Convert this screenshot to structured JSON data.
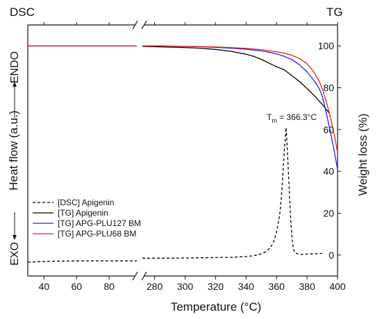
{
  "chart_data": {
    "type": "line",
    "corner_labels": {
      "left": "DSC",
      "right": "TG"
    },
    "xlabel": "Temperature (°C)",
    "ylabel_left": "Heat flow (a.u.)",
    "ylabel_right": "Weight loss (%)",
    "left_axis_annotations": {
      "top": "ENDO",
      "bottom": "EXO"
    },
    "x_break": {
      "left_segment": [
        30,
        97
      ],
      "right_segment": [
        272,
        400
      ]
    },
    "x_ticks_left": [
      40,
      60,
      80
    ],
    "x_ticks_right": [
      280,
      300,
      320,
      340,
      360,
      380,
      400
    ],
    "y_right_range": [
      -10,
      110
    ],
    "y_right_ticks": [
      0,
      20,
      40,
      60,
      80,
      100
    ],
    "legend_position": "lower-left",
    "annotation": {
      "text_main": "T",
      "text_sub": "m",
      "text_rest": " = 366.3°C",
      "x": 366.3
    },
    "series": [
      {
        "name": "[DSC] Apigenin",
        "axis": "left",
        "color": "#000000",
        "dash": "4,3",
        "x": [
          30,
          40,
          50,
          60,
          70,
          80,
          90,
          97,
          272,
          280,
          290,
          300,
          310,
          320,
          330,
          340,
          345,
          350,
          353,
          356,
          358,
          360,
          362,
          363,
          364,
          365,
          366,
          366.3,
          367,
          368,
          369,
          370,
          371,
          372,
          374,
          376,
          380,
          385,
          390
        ],
        "y": [
          -4.5,
          -4.2,
          -4.0,
          -3.9,
          -3.9,
          -3.9,
          -3.9,
          -3.9,
          -2.6,
          -2.6,
          -2.6,
          -2.5,
          -2.4,
          -2.3,
          -2.2,
          -1.8,
          -1.4,
          -0.5,
          0.5,
          2.5,
          5,
          10,
          18,
          25,
          36,
          48,
          58,
          60,
          50,
          35,
          20,
          8,
          2,
          0,
          -0.6,
          -0.8,
          -0.6,
          -0.5,
          -0.3
        ]
      },
      {
        "name": "[TG] Apigenin",
        "axis": "right",
        "color": "#000000",
        "x": [
          30,
          97,
          272,
          280,
          290,
          300,
          310,
          320,
          330,
          340,
          345,
          350,
          355,
          360,
          365,
          370,
          375,
          380,
          385,
          390,
          395
        ],
        "y": [
          100,
          100,
          99.8,
          99.6,
          99.4,
          99.2,
          98.9,
          98.3,
          97.4,
          96.0,
          95.0,
          93.6,
          91.8,
          90.0,
          88.6,
          85.8,
          83.0,
          79.6,
          76.0,
          72.0,
          67.5
        ]
      },
      {
        "name": "[TG] APG-PLU127 BM",
        "axis": "right",
        "color": "#2222dd",
        "x": [
          30,
          97,
          272,
          280,
          290,
          300,
          310,
          320,
          330,
          340,
          350,
          355,
          360,
          365,
          370,
          375,
          380,
          385,
          388,
          390,
          392,
          395,
          398,
          400
        ],
        "y": [
          100,
          100,
          100,
          100,
          99.9,
          99.8,
          99.6,
          99.3,
          98.9,
          98.4,
          97.6,
          97.0,
          96.2,
          95.0,
          93.5,
          91.0,
          87.6,
          83.0,
          79.5,
          76.0,
          70.0,
          60.0,
          49.0,
          41.0
        ]
      },
      {
        "name": "[TG] APG-PLU68 BM",
        "axis": "right",
        "color": "#dd2222",
        "x": [
          30,
          97,
          272,
          280,
          290,
          300,
          310,
          320,
          330,
          340,
          350,
          355,
          360,
          365,
          370,
          375,
          380,
          385,
          388,
          390,
          392,
          395,
          398,
          400
        ],
        "y": [
          100,
          100,
          100,
          100,
          99.9,
          99.8,
          99.7,
          99.5,
          99.2,
          98.8,
          98.2,
          97.7,
          97.2,
          96.5,
          95.5,
          94.0,
          91.5,
          87.0,
          83.0,
          79.5,
          75.0,
          67.0,
          57.0,
          49.0
        ]
      }
    ]
  }
}
